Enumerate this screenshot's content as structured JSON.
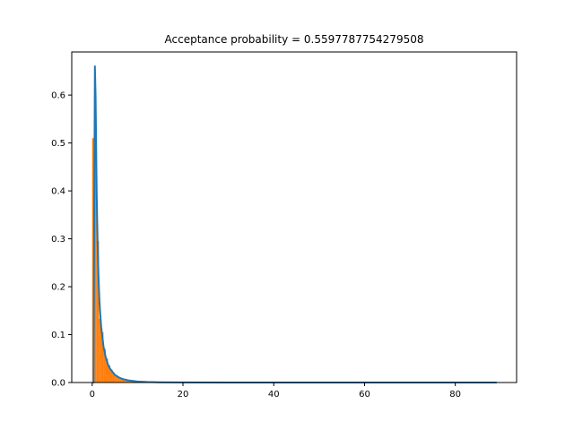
{
  "chart_data": {
    "type": "bar",
    "title": "Acceptance probability = 0.5597787754279508",
    "xlabel": "",
    "ylabel": "",
    "xlim": [
      -4.5,
      93.5
    ],
    "ylim": [
      0,
      0.69
    ],
    "x_ticks": [
      0,
      20,
      40,
      60,
      80
    ],
    "y_ticks": [
      0.0,
      0.1,
      0.2,
      0.3,
      0.4,
      0.5,
      0.6
    ],
    "x_tick_labels": [
      "0",
      "20",
      "40",
      "60",
      "80"
    ],
    "y_tick_labels": [
      "0.0",
      "0.1",
      "0.2",
      "0.3",
      "0.4",
      "0.5",
      "0.6"
    ],
    "grid": false,
    "legend": "none",
    "histogram": {
      "color": "#ff7f0e",
      "bin_edges": [
        0,
        0.5,
        1,
        1.5,
        2,
        2.5,
        3,
        3.5,
        4,
        4.5,
        5,
        5.5,
        6,
        6.5,
        7,
        7.5,
        8,
        8.5,
        9,
        9.5,
        10,
        10.5,
        11,
        11.5,
        12,
        12.5,
        13,
        13.5,
        14,
        14.5,
        15
      ],
      "values": [
        0.51,
        0.51,
        0.295,
        0.133,
        0.105,
        0.07,
        0.05,
        0.036,
        0.027,
        0.02,
        0.015,
        0.011,
        0.008,
        0.006,
        0.005,
        0.004,
        0.003,
        0.0025,
        0.002,
        0.0015,
        0.0012,
        0.001,
        0.0008,
        0.0006,
        0.0005,
        0.0004,
        0.0003,
        0.0002,
        0.0002,
        0.0001
      ]
    },
    "series": [
      {
        "color": "#1f77b4",
        "x": [
          0.3,
          0.45,
          0.6,
          0.75,
          0.9,
          1.0,
          1.2,
          1.4,
          1.6,
          1.8,
          2.0,
          2.5,
          3.0,
          3.5,
          4.0,
          5.0,
          6.0,
          7.0,
          8.0,
          10.0,
          12.0,
          15.0,
          20.0,
          30.0,
          40.0,
          50.0,
          60.0,
          70.0,
          80.0,
          89.0
        ],
        "y": [
          0.0,
          0.35,
          0.66,
          0.6,
          0.47,
          0.39,
          0.29,
          0.22,
          0.17,
          0.14,
          0.115,
          0.075,
          0.052,
          0.037,
          0.028,
          0.016,
          0.01,
          0.0065,
          0.0045,
          0.0022,
          0.0012,
          0.0005,
          0.0002,
          0.0,
          0.0,
          0.0,
          0.0,
          0.0,
          0.0,
          0.0
        ]
      }
    ]
  }
}
